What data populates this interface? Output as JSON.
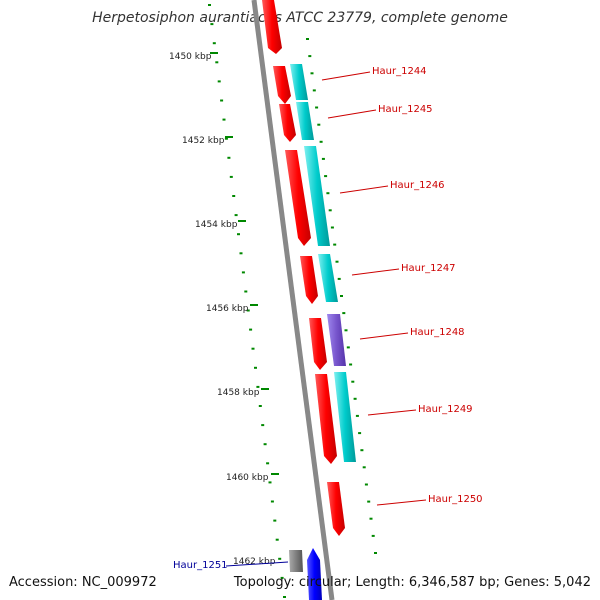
{
  "title": "Herpetosiphon aurantiacus ATCC 23779, complete genome",
  "footer": {
    "accession": "Accession: NC_009972",
    "summary": "Topology: circular; Length: 6,346,587 bp; Genes: 5,042"
  },
  "scale_labels": [
    "1450 kbp",
    "1452 kbp",
    "1454 kbp",
    "1456 kbp",
    "1458 kbp",
    "1460 kbp",
    "1462 kbp"
  ],
  "colors": {
    "backbone": "#888888",
    "gene_red": "#ff0000",
    "gene_cyan": "#00cccc",
    "gene_purple": "#7755cc",
    "gene_gray": "#777777",
    "gene_blue": "#0000ff",
    "scale_green": "#008800",
    "label_red": "#cc0000",
    "label_blue": "#000099"
  },
  "genes": [
    {
      "name": "Haur_1244",
      "color": "red"
    },
    {
      "name": "Haur_1245",
      "color": "red"
    },
    {
      "name": "Haur_1246",
      "color": "red"
    },
    {
      "name": "Haur_1247",
      "color": "red"
    },
    {
      "name": "Haur_1248",
      "color": "red"
    },
    {
      "name": "Haur_1249",
      "color": "red"
    },
    {
      "name": "Haur_1250",
      "color": "red"
    },
    {
      "name": "Haur_1251",
      "color": "blue"
    }
  ]
}
